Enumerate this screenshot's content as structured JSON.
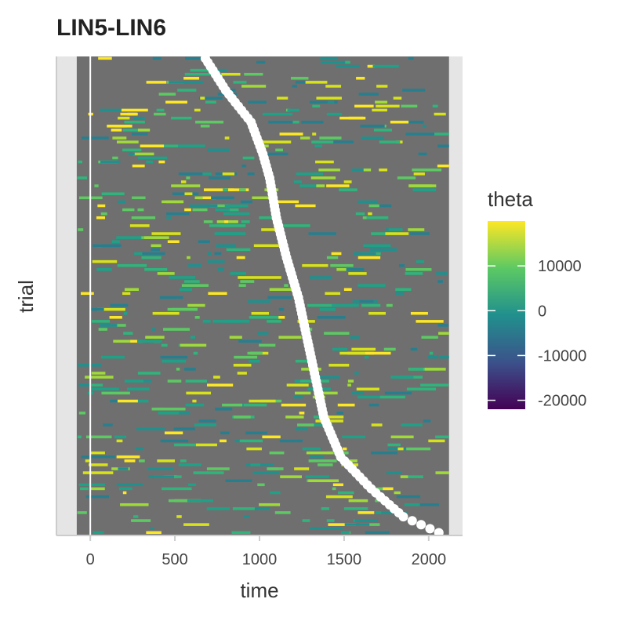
{
  "chart_data": {
    "type": "heatmap",
    "title": "LIN5-LIN6",
    "xlabel": "time",
    "ylabel": "trial",
    "xlim": [
      -200,
      2200
    ],
    "x_ticks": [
      0,
      500,
      1000,
      1500,
      2000
    ],
    "x_tick_labels": [
      "0",
      "500",
      "1000",
      "1500",
      "2000"
    ],
    "data_time_range": [
      -80,
      2120
    ],
    "trial_count": 120,
    "background_color": "#6f6f6f",
    "panel_color": "#e5e5e5",
    "vline_x": 0,
    "grid": false,
    "legend": {
      "title": "theta",
      "position": "right",
      "range": [
        -22000,
        20000
      ],
      "ticks": [
        10000,
        0,
        -10000,
        -20000
      ],
      "tick_labels": [
        "10000",
        "0",
        "-10000",
        "-20000"
      ],
      "colormap": [
        "#440154",
        "#3b528b",
        "#21908d",
        "#5dc963",
        "#fde725"
      ]
    },
    "response_times": [
      {
        "trial": 120,
        "time": 680
      },
      {
        "trial": 112,
        "time": 800
      },
      {
        "trial": 104,
        "time": 950
      },
      {
        "trial": 96,
        "time": 1020
      },
      {
        "trial": 90,
        "time": 1060
      },
      {
        "trial": 80,
        "time": 1100
      },
      {
        "trial": 70,
        "time": 1160
      },
      {
        "trial": 60,
        "time": 1230
      },
      {
        "trial": 50,
        "time": 1280
      },
      {
        "trial": 40,
        "time": 1330
      },
      {
        "trial": 30,
        "time": 1380
      },
      {
        "trial": 20,
        "time": 1480
      },
      {
        "trial": 12,
        "time": 1660
      },
      {
        "trial": 5,
        "time": 1850
      },
      {
        "trial": 1,
        "time": 2060
      }
    ]
  }
}
